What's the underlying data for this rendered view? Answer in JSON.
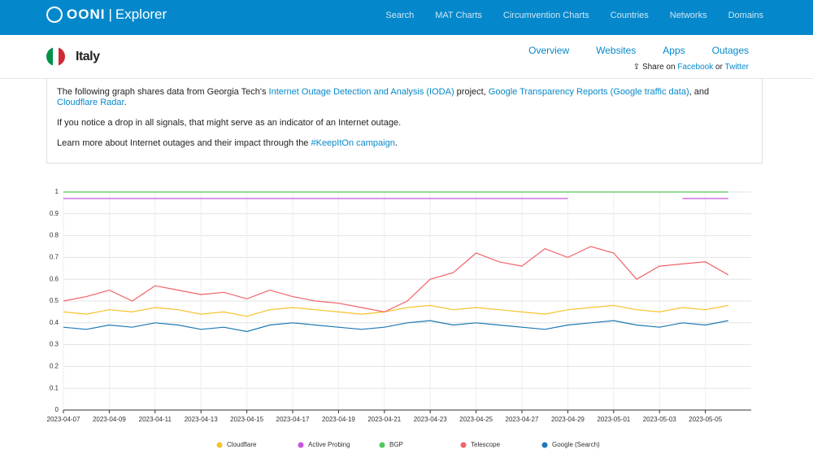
{
  "nav": {
    "logo": "OONI",
    "product": "Explorer",
    "links": [
      "Search",
      "MAT Charts",
      "Circumvention Charts",
      "Countries",
      "Networks",
      "Domains"
    ]
  },
  "country": {
    "name": "Italy",
    "tabs": [
      "Overview",
      "Websites",
      "Apps",
      "Outages"
    ],
    "share": {
      "prefix": "Share on",
      "facebook": "Facebook",
      "or": "or",
      "twitter": "Twitter"
    }
  },
  "info": {
    "paragraphs": [
      [
        {
          "text": "The following graph shares data from Georgia Tech's ",
          "link": false
        },
        {
          "text": "Internet Outage Detection and Analysis (IODA)",
          "link": true
        },
        {
          "text": " project, ",
          "link": false
        },
        {
          "text": "Google Transparency Reports (Google traffic data)",
          "link": true
        },
        {
          "text": ", and ",
          "link": false
        },
        {
          "text": "Cloudflare Radar",
          "link": true
        },
        {
          "text": ".",
          "link": false
        }
      ],
      [
        {
          "text": "If you notice a drop in all signals, that might serve as an indicator of an Internet outage.",
          "link": false
        }
      ],
      [
        {
          "text": "Learn more about Internet outages and their impact through the ",
          "link": false
        },
        {
          "text": "#KeepItOn campaign",
          "link": true
        },
        {
          "text": ".",
          "link": false
        }
      ]
    ]
  },
  "chart_data": {
    "type": "line",
    "grid": true,
    "legend": "bottom",
    "xlim": [
      "2023-04-07",
      "2023-05-07"
    ],
    "xticks": [
      "2023-04-07",
      "2023-04-09",
      "2023-04-11",
      "2023-04-13",
      "2023-04-15",
      "2023-04-17",
      "2023-04-19",
      "2023-04-21",
      "2023-04-23",
      "2023-04-25",
      "2023-04-27",
      "2023-04-29",
      "2023-05-01",
      "2023-05-03",
      "2023-05-05"
    ],
    "ylim": [
      0,
      1
    ],
    "yticks": [
      0,
      0.1,
      0.2,
      0.3,
      0.4,
      0.5,
      0.6,
      0.7,
      0.8,
      0.9,
      1
    ],
    "x": [
      "2023-04-07",
      "2023-04-08",
      "2023-04-09",
      "2023-04-10",
      "2023-04-11",
      "2023-04-12",
      "2023-04-13",
      "2023-04-14",
      "2023-04-15",
      "2023-04-16",
      "2023-04-17",
      "2023-04-18",
      "2023-04-19",
      "2023-04-20",
      "2023-04-21",
      "2023-04-22",
      "2023-04-23",
      "2023-04-24",
      "2023-04-25",
      "2023-04-26",
      "2023-04-27",
      "2023-04-28",
      "2023-04-29",
      "2023-04-30",
      "2023-05-01",
      "2023-05-02",
      "2023-05-03",
      "2023-05-04",
      "2023-05-05",
      "2023-05-06"
    ],
    "series": [
      {
        "name": "Cloudflare",
        "color": "#f6c22b",
        "values": [
          0.45,
          0.44,
          0.46,
          0.45,
          0.47,
          0.46,
          0.44,
          0.45,
          0.43,
          0.46,
          0.47,
          0.46,
          0.45,
          0.44,
          0.45,
          0.47,
          0.48,
          0.46,
          0.47,
          0.46,
          0.45,
          0.44,
          0.46,
          0.47,
          0.48,
          0.46,
          0.45,
          0.47,
          0.46,
          0.48
        ]
      },
      {
        "name": "Active Probing",
        "color": "#c455e0",
        "values": [
          0.97,
          0.97,
          0.97,
          0.97,
          0.97,
          0.97,
          0.97,
          0.97,
          0.97,
          0.97,
          0.97,
          0.97,
          0.97,
          0.97,
          0.97,
          0.97,
          0.97,
          0.97,
          0.97,
          0.97,
          0.97,
          0.97,
          0.97,
          null,
          null,
          null,
          null,
          0.97,
          0.97,
          0.97
        ]
      },
      {
        "name": "BGP",
        "color": "#51c75b",
        "values": [
          1,
          1,
          1,
          1,
          1,
          1,
          1,
          1,
          1,
          1,
          1,
          1,
          1,
          1,
          1,
          1,
          1,
          1,
          1,
          1,
          1,
          1,
          1,
          1,
          1,
          1,
          1,
          1,
          1,
          1
        ]
      },
      {
        "name": "Telescope",
        "color": "#f0636a",
        "values": [
          0.5,
          0.52,
          0.55,
          0.5,
          0.57,
          0.55,
          0.53,
          0.54,
          0.51,
          0.55,
          0.52,
          0.5,
          0.49,
          0.47,
          0.45,
          0.5,
          0.6,
          0.63,
          0.72,
          0.68,
          0.66,
          0.74,
          0.7,
          0.75,
          0.72,
          0.6,
          0.66,
          0.67,
          0.68,
          0.62
        ]
      },
      {
        "name": "Google (Search)",
        "color": "#1f78b4",
        "values": [
          0.38,
          0.37,
          0.39,
          0.38,
          0.4,
          0.39,
          0.37,
          0.38,
          0.36,
          0.39,
          0.4,
          0.39,
          0.38,
          0.37,
          0.38,
          0.4,
          0.41,
          0.39,
          0.4,
          0.39,
          0.38,
          0.37,
          0.39,
          0.4,
          0.41,
          0.39,
          0.38,
          0.4,
          0.39,
          0.41
        ]
      }
    ]
  }
}
